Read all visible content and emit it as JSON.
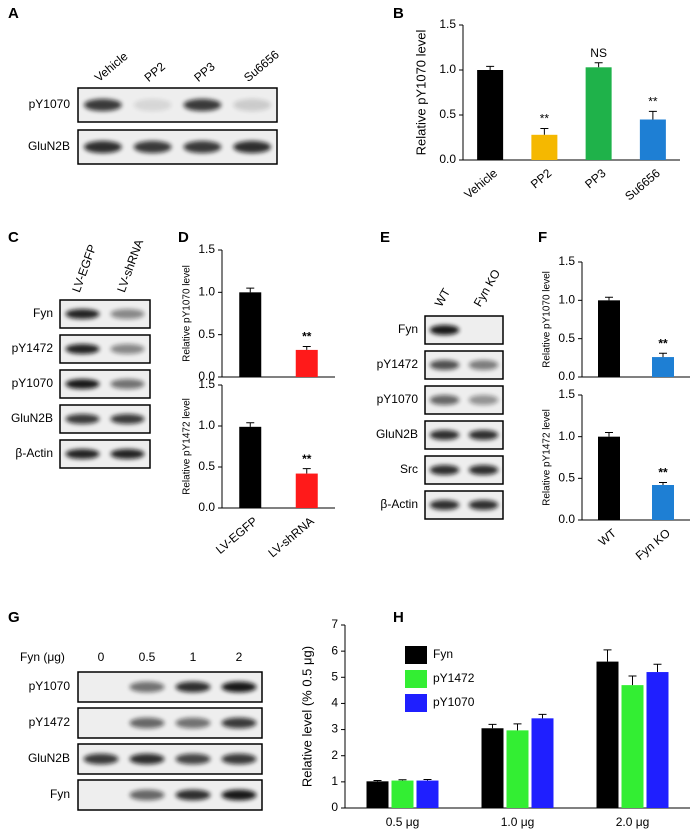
{
  "chart_data": [
    {
      "type": "bar",
      "panel": "B",
      "y_label": "Relative pY1070 level",
      "categories": [
        "Vehicle",
        "PP2",
        "PP3",
        "Su6656"
      ],
      "values": [
        1.0,
        0.28,
        1.03,
        0.45
      ],
      "errors": [
        0.04,
        0.07,
        0.05,
        0.09
      ],
      "colors": [
        "#000000",
        "#f5b800",
        "#1fb24a",
        "#1e7fd4"
      ],
      "annotations": [
        null,
        "**",
        "NS",
        "**"
      ],
      "ylim": [
        0,
        1.5
      ],
      "yticks": [
        {
          "value": 0,
          "label": "0.0"
        },
        {
          "value": 0.5,
          "label": "0.5"
        },
        {
          "value": 1,
          "label": "1.0"
        },
        {
          "value": 1.5,
          "label": "1.5"
        }
      ]
    },
    {
      "type": "bar",
      "panel": "D",
      "y_label": "Relative pY1070 level",
      "categories": [
        null,
        null
      ],
      "values": [
        1.0,
        0.32
      ],
      "errors": [
        0.05,
        0.04
      ],
      "colors": [
        "#000000",
        "#ff1a1a"
      ],
      "annotations": [
        null,
        "**"
      ],
      "ylim": [
        0,
        1.5
      ],
      "yticks": [
        {
          "value": 0,
          "label": "0.0"
        },
        {
          "value": 0.5,
          "label": "0.5"
        },
        {
          "value": 1,
          "label": "1.0"
        },
        {
          "value": 1.5,
          "label": "1.5"
        }
      ]
    },
    {
      "type": "bar",
      "y_label": "Relative pY1472 level",
      "categories": [
        "LV-EGFP",
        "LV-shRNA"
      ],
      "category_colors": [
        "#000000",
        "#e02020"
      ],
      "values": [
        0.99,
        0.42
      ],
      "errors": [
        0.05,
        0.06
      ],
      "colors": [
        "#000000",
        "#ff1a1a"
      ],
      "annotations": [
        null,
        "**"
      ],
      "ylim": [
        0,
        1.5
      ],
      "yticks": [
        {
          "value": 0,
          "label": "0.0"
        },
        {
          "value": 0.5,
          "label": "0.5"
        },
        {
          "value": 1,
          "label": "1.0"
        },
        {
          "value": 1.5,
          "label": "1.5"
        }
      ]
    },
    {
      "type": "bar",
      "panel": "F",
      "y_label": "Relative pY1070 level",
      "categories": [
        null,
        null
      ],
      "values": [
        1.0,
        0.26
      ],
      "errors": [
        0.04,
        0.05
      ],
      "colors": [
        "#000000",
        "#1e7fd4"
      ],
      "annotations": [
        null,
        "**"
      ],
      "ylim": [
        0,
        1.5
      ],
      "yticks": [
        {
          "value": 0,
          "label": "0.0"
        },
        {
          "value": 0.5,
          "label": "0.5"
        },
        {
          "value": 1,
          "label": "1.0"
        },
        {
          "value": 1.5,
          "label": "1.5"
        }
      ]
    },
    {
      "type": "bar",
      "y_label": "Relative pY1472 level",
      "categories": [
        "WT",
        "Fyn KO"
      ],
      "category_colors": [
        "#000000",
        "#1e7fd4"
      ],
      "values": [
        1.0,
        0.42
      ],
      "errors": [
        0.05,
        0.03
      ],
      "colors": [
        "#000000",
        "#1e7fd4"
      ],
      "annotations": [
        null,
        "**"
      ],
      "ylim": [
        0,
        1.5
      ],
      "yticks": [
        {
          "value": 0,
          "label": "0.0"
        },
        {
          "value": 0.5,
          "label": "0.5"
        },
        {
          "value": 1,
          "label": "1.0"
        },
        {
          "value": 1.5,
          "label": "1.5"
        }
      ]
    },
    {
      "type": "grouped_bar",
      "panel": "H",
      "y_label": "Relative level (% 0.5 μg)",
      "categories": [
        "0.5 μg",
        "1.0 μg",
        "2.0 μg"
      ],
      "series": [
        {
          "name": "Fyn",
          "color": "#000000",
          "values": [
            1.02,
            3.05,
            5.6
          ],
          "errors": [
            0.03,
            0.15,
            0.45
          ]
        },
        {
          "name": "pY1472",
          "color": "#33ee33",
          "values": [
            1.05,
            2.97,
            4.7
          ],
          "errors": [
            0.03,
            0.25,
            0.35
          ]
        },
        {
          "name": "pY1070",
          "color": "#1f1fff",
          "values": [
            1.05,
            3.43,
            5.2
          ],
          "errors": [
            0.04,
            0.15,
            0.3
          ]
        }
      ],
      "ylim": [
        0,
        7
      ],
      "yticks": [
        0,
        1,
        2,
        3,
        4,
        5,
        6,
        7
      ]
    }
  ],
  "blots": [
    {
      "panel": "A",
      "lanes": [
        "Vehicle",
        "PP2",
        "PP3",
        "Su6656"
      ],
      "rows": [
        "pY1070",
        "GluN2B"
      ]
    },
    {
      "panel": "C",
      "lanes": [
        "LV-EGFP",
        "LV-shRNA"
      ],
      "rows": [
        "Fyn",
        "pY1472",
        "pY1070",
        "GluN2B",
        "β-Actin"
      ]
    },
    {
      "panel": "E",
      "lanes": [
        "WT",
        "Fyn KO"
      ],
      "lane_colors": [
        "#000000",
        "#1e7fd4"
      ],
      "rows": [
        "Fyn",
        "pY1472",
        "pY1070",
        "GluN2B",
        "Src",
        "β-Actin"
      ]
    },
    {
      "panel": "G",
      "lane_title": "Fyn (μg)",
      "lanes": [
        "0",
        "0.5",
        "1",
        "2"
      ],
      "rows": [
        "pY1070",
        "pY1472",
        "GluN2B",
        "Fyn"
      ]
    }
  ]
}
